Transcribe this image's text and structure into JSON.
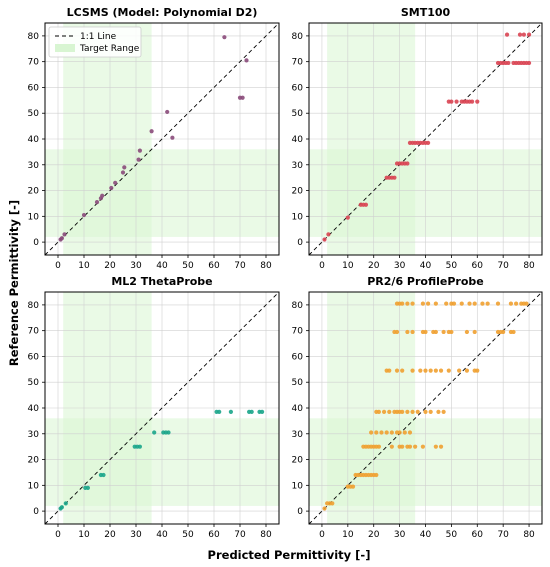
{
  "figure": {
    "xlabel": "Predicted Permittivity [-]",
    "ylabel": "Reference Permittivity [-]"
  },
  "legend": {
    "placement": "top-left of first panel",
    "items": [
      {
        "label": "1:1 Line",
        "kind": "dashed-line",
        "color": "#000000"
      },
      {
        "label": "Target Range",
        "kind": "patch",
        "color": "#c8f0c0"
      }
    ]
  },
  "chart_data": [
    {
      "type": "scatter",
      "title": "LCSMS (Model: Polynomial D2)",
      "color": "#8a4a7a",
      "xlim": [
        -5,
        85
      ],
      "ylim": [
        -5,
        85
      ],
      "xticks": [
        0,
        10,
        20,
        30,
        40,
        50,
        60,
        70,
        80
      ],
      "yticks": [
        0,
        10,
        20,
        30,
        40,
        50,
        60,
        70,
        80
      ],
      "grid": true,
      "target_range": [
        2,
        36
      ],
      "x": [
        1,
        1.5,
        2.5,
        10,
        15,
        16.5,
        17,
        20.5,
        22,
        25,
        25.5,
        31,
        31.5,
        36,
        42,
        44,
        64,
        70,
        71,
        72.5
      ],
      "y": [
        1,
        1.5,
        3,
        10.5,
        15.5,
        17,
        18,
        21,
        23,
        27,
        29,
        32,
        35.5,
        43,
        50.5,
        40.5,
        79.5,
        56,
        56,
        70.5
      ]
    },
    {
      "type": "scatter",
      "title": "SMT100",
      "color": "#d94452",
      "xlim": [
        -5,
        85
      ],
      "ylim": [
        -5,
        85
      ],
      "xticks": [
        0,
        10,
        20,
        30,
        40,
        50,
        60,
        70,
        80
      ],
      "yticks": [
        0,
        10,
        20,
        30,
        40,
        50,
        60,
        70,
        80
      ],
      "grid": true,
      "target_range": [
        2,
        36
      ],
      "x": [
        1,
        2.5,
        10,
        15,
        16,
        17,
        25,
        26,
        27,
        28,
        29,
        30,
        31,
        32,
        33,
        34,
        35,
        36,
        37,
        38,
        39,
        40,
        41,
        49,
        50,
        52,
        54,
        55,
        56,
        57,
        58,
        60,
        68,
        69,
        70,
        71,
        72,
        74,
        75,
        76,
        77,
        78,
        79,
        80,
        71.5,
        76.5,
        78,
        80
      ],
      "y": [
        1,
        3,
        9.5,
        14.5,
        14.5,
        14.5,
        25,
        25,
        25,
        25,
        30.5,
        30.5,
        30.5,
        30.5,
        30.5,
        38.5,
        38.5,
        38.5,
        38.5,
        38.5,
        38.5,
        38.5,
        38.5,
        54.5,
        54.5,
        54.5,
        54.5,
        54.5,
        54.5,
        54.5,
        54.5,
        54.5,
        69.5,
        69.5,
        69.5,
        69.5,
        69.5,
        69.5,
        69.5,
        69.5,
        69.5,
        69.5,
        69.5,
        69.5,
        80.5,
        80.5,
        80.5,
        80.5
      ]
    },
    {
      "type": "scatter",
      "title": "ML2 ThetaProbe",
      "color": "#1aa58a",
      "xlim": [
        -5,
        85
      ],
      "ylim": [
        -5,
        85
      ],
      "xticks": [
        0,
        10,
        20,
        30,
        40,
        50,
        60,
        70,
        80
      ],
      "yticks": [
        0,
        10,
        20,
        30,
        40,
        50,
        60,
        70,
        80
      ],
      "grid": true,
      "target_range": [
        2,
        36
      ],
      "x": [
        1,
        1.5,
        3,
        10.5,
        11.5,
        16.5,
        17.5,
        29.5,
        30.5,
        31.5,
        37,
        40.5,
        41.5,
        42.5,
        61,
        62,
        66.5,
        73.5,
        74.5,
        77.5,
        78.5
      ],
      "y": [
        1,
        1.5,
        3,
        9,
        9,
        14,
        14,
        25,
        25,
        25,
        30.5,
        30.5,
        30.5,
        30.5,
        38.5,
        38.5,
        38.5,
        38.5,
        38.5,
        38.5,
        38.5
      ]
    },
    {
      "type": "scatter",
      "title": "PR2/6 ProfileProbe",
      "color": "#f0a030",
      "xlim": [
        -5,
        85
      ],
      "ylim": [
        -5,
        85
      ],
      "xticks": [
        0,
        10,
        20,
        30,
        40,
        50,
        60,
        70,
        80
      ],
      "yticks": [
        0,
        10,
        20,
        30,
        40,
        50,
        60,
        70,
        80
      ],
      "grid": true,
      "target_range": [
        2,
        36
      ],
      "x": [
        1,
        2,
        3,
        4,
        10,
        11,
        12,
        13,
        14,
        15,
        16,
        17,
        18,
        19,
        20,
        21,
        16,
        17,
        18,
        19,
        20,
        19,
        21,
        23,
        25,
        27,
        29,
        30,
        32,
        34,
        21,
        22,
        24,
        26,
        28,
        29,
        30,
        31,
        33,
        35,
        37,
        40,
        42,
        45,
        47,
        21,
        22,
        27,
        30,
        31,
        33,
        34,
        36,
        39,
        44,
        46,
        25,
        26,
        29,
        31,
        35,
        38,
        40,
        42,
        44,
        46,
        49,
        53,
        56,
        59,
        60,
        28,
        29,
        33,
        35,
        39,
        40,
        43,
        44,
        47,
        49,
        50,
        56,
        59,
        68,
        69,
        70,
        73,
        74,
        29,
        30,
        31,
        33,
        35,
        39,
        41,
        44,
        48,
        50,
        51,
        54,
        57,
        59,
        62,
        64,
        68,
        73,
        75,
        77,
        78,
        79
      ],
      "y": [
        1,
        3,
        3,
        3,
        9.5,
        9.5,
        9.5,
        14,
        14,
        14,
        14,
        14,
        14,
        14,
        14,
        14,
        25,
        25,
        25,
        25,
        25,
        30.5,
        30.5,
        30.5,
        30.5,
        30.5,
        30.5,
        30.5,
        30.5,
        30.5,
        38.5,
        38.5,
        38.5,
        38.5,
        38.5,
        38.5,
        38.5,
        38.5,
        38.5,
        38.5,
        38.5,
        38.5,
        38.5,
        38.5,
        38.5,
        25,
        25,
        25,
        25,
        25,
        25,
        25,
        25,
        25,
        25,
        25,
        54.5,
        54.5,
        54.5,
        54.5,
        54.5,
        54.5,
        54.5,
        54.5,
        54.5,
        54.5,
        54.5,
        54.5,
        54.5,
        54.5,
        54.5,
        69.5,
        69.5,
        69.5,
        69.5,
        69.5,
        69.5,
        69.5,
        69.5,
        69.5,
        69.5,
        69.5,
        69.5,
        69.5,
        69.5,
        69.5,
        69.5,
        69.5,
        69.5,
        80.5,
        80.5,
        80.5,
        80.5,
        80.5,
        80.5,
        80.5,
        80.5,
        80.5,
        80.5,
        80.5,
        80.5,
        80.5,
        80.5,
        80.5,
        80.5,
        80.5,
        80.5,
        80.5,
        80.5,
        80.5,
        80.5
      ]
    }
  ]
}
